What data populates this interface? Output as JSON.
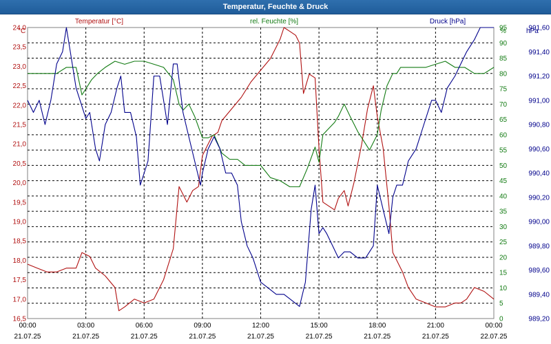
{
  "window": {
    "title": "Temperatur, Feuchte & Druck"
  },
  "colors": {
    "temperature": "#b01010",
    "humidity": "#117a11",
    "pressure": "#00008b",
    "grid": "#000000",
    "frame": "#808080"
  },
  "chart_data": {
    "type": "line",
    "title": "Temperatur, Feuchte & Druck",
    "x": {
      "range": [
        0,
        24
      ],
      "tick_times": [
        "00:00",
        "03:00",
        "06:00",
        "09:00",
        "12:00",
        "15:00",
        "18:00",
        "21:00",
        "00:00"
      ],
      "tick_dates": [
        "21.07.25",
        "21.07.25",
        "21.07.25",
        "21.07.25",
        "21.07.25",
        "21.07.25",
        "21.07.25",
        "21.07.25",
        "22.07.25"
      ],
      "tick_hours": [
        0,
        3,
        6,
        9,
        12,
        15,
        18,
        21,
        24
      ]
    },
    "axes": {
      "temperature": {
        "unit": "°C",
        "label": "Temperatur [°C]",
        "range": [
          16.5,
          24.0
        ],
        "ticks": [
          "16,5",
          "17,0",
          "17,5",
          "18,0",
          "18,5",
          "19,0",
          "19,5",
          "20,0",
          "20,5",
          "21,0",
          "21,5",
          "22,0",
          "22,5",
          "23,0",
          "23,5",
          "24,0"
        ]
      },
      "humidity": {
        "unit": "%",
        "label": "rel. Feuchte [%]",
        "range": [
          0,
          95
        ],
        "ticks": [
          "0",
          "5",
          "10",
          "15",
          "20",
          "25",
          "30",
          "35",
          "40",
          "45",
          "50",
          "55",
          "60",
          "65",
          "70",
          "75",
          "80",
          "85",
          "90",
          "95"
        ]
      },
      "pressure": {
        "unit": "hPa",
        "label": "Druck [hPa]",
        "range": [
          989.2,
          991.6
        ],
        "ticks": [
          "989,20",
          "989,40",
          "989,60",
          "989,80",
          "990,00",
          "990,20",
          "990,40",
          "990,60",
          "990,80",
          "991,00",
          "991,20",
          "991,40",
          "991,60"
        ]
      }
    },
    "series": [
      {
        "name": "Temperatur [°C]",
        "axis": "temperature",
        "color": "#b01010",
        "x": [
          0,
          0.5,
          1,
          1.5,
          2,
          2.5,
          2.8,
          3.2,
          3.5,
          4,
          4.5,
          4.7,
          5,
          5.5,
          6,
          6.5,
          7,
          7.5,
          7.8,
          8.2,
          8.5,
          8.8,
          9,
          9.2,
          9.5,
          9.8,
          10,
          10.5,
          11,
          11.5,
          12,
          12.5,
          12.8,
          13,
          13.2,
          13.5,
          13.8,
          14,
          14.2,
          14.5,
          14.8,
          15,
          15.2,
          15.5,
          15.8,
          16,
          16.3,
          16.5,
          16.8,
          17.2,
          17.5,
          17.8,
          18,
          18.3,
          18.6,
          18.8,
          19,
          19.3,
          19.6,
          20,
          20.5,
          21,
          21.5,
          22,
          22.3,
          22.6,
          23,
          23.5,
          24
        ],
        "y": [
          17.9,
          17.8,
          17.7,
          17.7,
          17.8,
          17.8,
          18.2,
          18.1,
          17.8,
          17.6,
          17.3,
          16.7,
          16.8,
          17.0,
          16.9,
          17.0,
          17.5,
          18.3,
          19.9,
          19.5,
          19.8,
          19.9,
          20.7,
          20.9,
          21.2,
          21.3,
          21.6,
          21.9,
          22.2,
          22.6,
          22.9,
          23.2,
          23.5,
          23.7,
          24.0,
          23.9,
          23.8,
          23.6,
          22.3,
          22.8,
          22.7,
          20.9,
          19.5,
          19.4,
          19.3,
          19.6,
          19.8,
          19.4,
          20.0,
          21.0,
          21.9,
          22.5,
          21.7,
          20.9,
          19.4,
          18.2,
          18.0,
          17.7,
          17.3,
          17.0,
          16.9,
          16.8,
          16.8,
          16.9,
          16.9,
          17.0,
          17.3,
          17.2,
          17.0
        ]
      },
      {
        "name": "rel. Feuchte [%]",
        "axis": "humidity",
        "color": "#117a11",
        "x": [
          0,
          0.5,
          1,
          1.5,
          2,
          2.5,
          2.8,
          3,
          3.3,
          3.6,
          4,
          4.5,
          5,
          5.5,
          6,
          6.5,
          7,
          7.5,
          7.8,
          8,
          8.3,
          8.6,
          9,
          9.3,
          9.6,
          10,
          10.4,
          10.8,
          11.2,
          11.6,
          12,
          12.5,
          13,
          13.5,
          14,
          14.4,
          14.8,
          15,
          15.2,
          15.5,
          15.8,
          16,
          16.3,
          16.6,
          17,
          17.3,
          17.6,
          18,
          18.2,
          18.5,
          18.8,
          19,
          19.2,
          19.5,
          20,
          20.5,
          21,
          21.5,
          22,
          22.5,
          23,
          23.5,
          24
        ],
        "y": [
          80,
          80,
          80,
          80,
          82,
          82,
          73,
          75,
          78,
          80,
          82,
          84,
          83,
          84,
          84,
          83,
          82,
          78,
          70,
          68,
          70,
          66,
          59,
          59,
          60,
          54,
          52,
          52,
          50,
          50,
          50,
          46,
          45,
          43,
          43,
          49,
          56,
          51,
          60,
          62,
          64,
          66,
          70,
          66,
          61,
          58,
          55,
          60,
          68,
          76,
          80,
          80,
          82,
          82,
          82,
          82,
          83,
          84,
          82,
          82,
          80,
          80,
          82
        ]
      },
      {
        "name": "Druck [hPa]",
        "axis": "pressure",
        "color": "#00008b",
        "x": [
          0,
          0.3,
          0.6,
          0.9,
          1.2,
          1.5,
          1.8,
          2.0,
          2.2,
          2.5,
          2.7,
          3.0,
          3.2,
          3.5,
          3.7,
          4.0,
          4.3,
          4.6,
          4.8,
          5.0,
          5.3,
          5.6,
          5.8,
          6.0,
          6.2,
          6.5,
          6.8,
          7.0,
          7.2,
          7.5,
          7.7,
          8.0,
          8.3,
          8.6,
          8.9,
          9.0,
          9.3,
          9.6,
          9.9,
          10.2,
          10.5,
          10.8,
          11.0,
          11.3,
          11.6,
          12.0,
          12.4,
          12.8,
          13.2,
          13.6,
          14.0,
          14.3,
          14.6,
          14.8,
          15.0,
          15.2,
          15.4,
          15.7,
          16.0,
          16.3,
          16.6,
          17.0,
          17.4,
          17.8,
          18.0,
          18.3,
          18.6,
          18.8,
          19.0,
          19.3,
          19.6,
          20.0,
          20.4,
          20.8,
          21.0,
          21.3,
          21.6,
          22.0,
          22.3,
          22.6,
          23.0,
          23.3,
          23.6,
          24.0
        ],
        "y": [
          991.0,
          990.9,
          991.0,
          990.8,
          991.0,
          991.3,
          991.4,
          991.6,
          991.4,
          991.1,
          991.0,
          990.85,
          990.9,
          990.6,
          990.5,
          990.8,
          990.9,
          991.1,
          991.2,
          990.9,
          990.9,
          990.7,
          990.3,
          990.4,
          990.5,
          991.2,
          991.2,
          991.0,
          990.8,
          991.3,
          991.3,
          990.9,
          990.7,
          990.5,
          990.3,
          990.4,
          990.6,
          990.7,
          990.6,
          990.4,
          990.4,
          990.3,
          990.0,
          989.8,
          989.7,
          989.5,
          989.45,
          989.4,
          989.4,
          989.35,
          989.3,
          989.5,
          990.1,
          990.3,
          989.9,
          989.95,
          989.9,
          989.8,
          989.7,
          989.75,
          989.75,
          989.7,
          989.7,
          989.8,
          990.3,
          990.1,
          989.9,
          990.2,
          990.3,
          990.3,
          990.5,
          990.6,
          990.8,
          991.0,
          991.0,
          990.9,
          991.1,
          991.2,
          991.3,
          991.4,
          991.5,
          991.6,
          991.6,
          991.6
        ]
      }
    ]
  }
}
